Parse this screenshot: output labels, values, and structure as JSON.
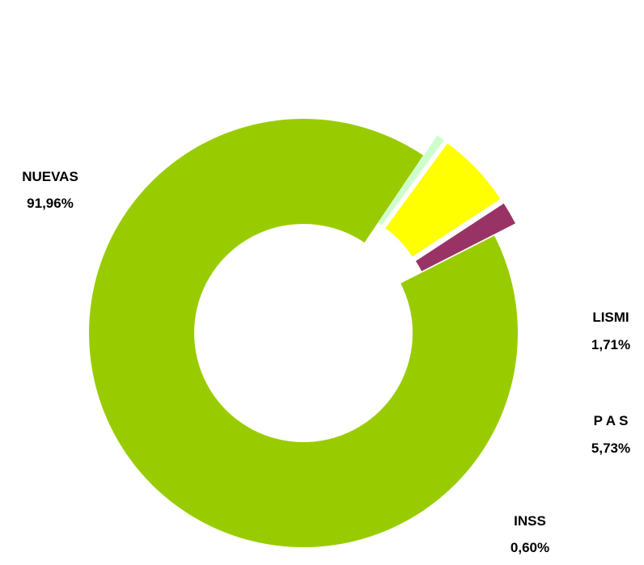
{
  "chart_data": {
    "type": "pie",
    "variant": "donut",
    "grid": false,
    "legend": "none",
    "slices": [
      {
        "label": "NUEVAS",
        "value": 91.96,
        "value_label": "91,96%",
        "color": "#99CC00",
        "exploded": false
      },
      {
        "label": "LISMI",
        "value": 1.71,
        "value_label": "1,71%",
        "color": "#993366",
        "exploded": true
      },
      {
        "label": "P A S",
        "value": 5.73,
        "value_label": "5,73%",
        "color": "#FFFF00",
        "exploded": true
      },
      {
        "label": "INSS",
        "value": 0.6,
        "value_label": "0,60%",
        "color": "#CCFFCC",
        "exploded": true
      }
    ]
  }
}
